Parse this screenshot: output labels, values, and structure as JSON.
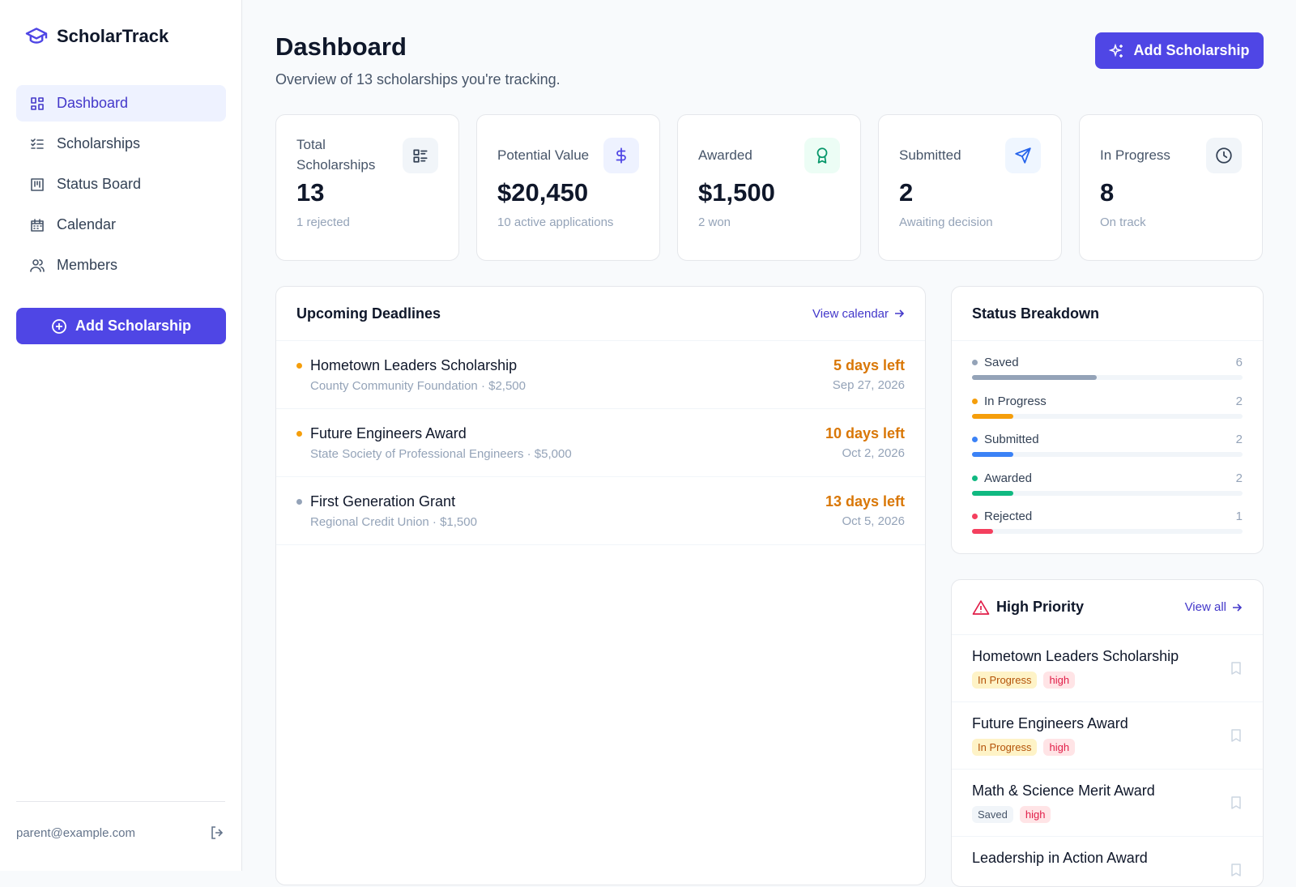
{
  "sidebar": {
    "brand": "ScholarTrack",
    "nav": [
      "Dashboard",
      "Scholarships",
      "Status Board",
      "Calendar",
      "Members"
    ],
    "add_button": "Add Scholarship",
    "user_email": "parent@example.com"
  },
  "header": {
    "title": "Dashboard",
    "subtitle": "Overview of 13 scholarships you're tracking.",
    "add_button": "Add Scholarship"
  },
  "stats": [
    {
      "label": "Total Scholarships",
      "value": "13",
      "note": "1 rejected"
    },
    {
      "label": "Potential Value",
      "value": "$20,450",
      "note": "10 active applications"
    },
    {
      "label": "Awarded",
      "value": "$1,500",
      "note": "2 won"
    },
    {
      "label": "Submitted",
      "value": "2",
      "note": "Awaiting decision"
    },
    {
      "label": "In Progress",
      "value": "8",
      "note": "On track"
    }
  ],
  "deadlines": {
    "title": "Upcoming Deadlines",
    "link": "View calendar",
    "items": [
      {
        "name": "Hometown Leaders Scholarship",
        "meta": "County Community Foundation · $2,500",
        "days_left": "5 days left",
        "date": "Sep 27, 2026",
        "dot": "#f59e0b"
      },
      {
        "name": "Future Engineers Award",
        "meta": "State Society of Professional Engineers · $5,000",
        "days_left": "10 days left",
        "date": "Oct 2, 2026",
        "dot": "#f59e0b"
      },
      {
        "name": "First Generation Grant",
        "meta": "Regional Credit Union · $1,500",
        "days_left": "13 days left",
        "date": "Oct 5, 2026",
        "dot": "#94a3b8"
      }
    ]
  },
  "status_breakdown": {
    "title": "Status Breakdown",
    "items": [
      {
        "label": "Saved",
        "count": 6,
        "color": "#94a3b8"
      },
      {
        "label": "In Progress",
        "count": 2,
        "color": "#f59e0b"
      },
      {
        "label": "Submitted",
        "count": 2,
        "color": "#3b82f6"
      },
      {
        "label": "Awarded",
        "count": 2,
        "color": "#10b981"
      },
      {
        "label": "Rejected",
        "count": 1,
        "color": "#f43f5e"
      }
    ]
  },
  "high_priority": {
    "title": "High Priority",
    "link": "View all",
    "items": [
      {
        "name": "Hometown Leaders Scholarship",
        "status": "In Progress",
        "priority": "high"
      },
      {
        "name": "Future Engineers Award",
        "status": "In Progress",
        "priority": "high"
      },
      {
        "name": "Math & Science Merit Award",
        "status": "Saved",
        "priority": "high"
      },
      {
        "name": "Leadership in Action Award"
      }
    ]
  }
}
